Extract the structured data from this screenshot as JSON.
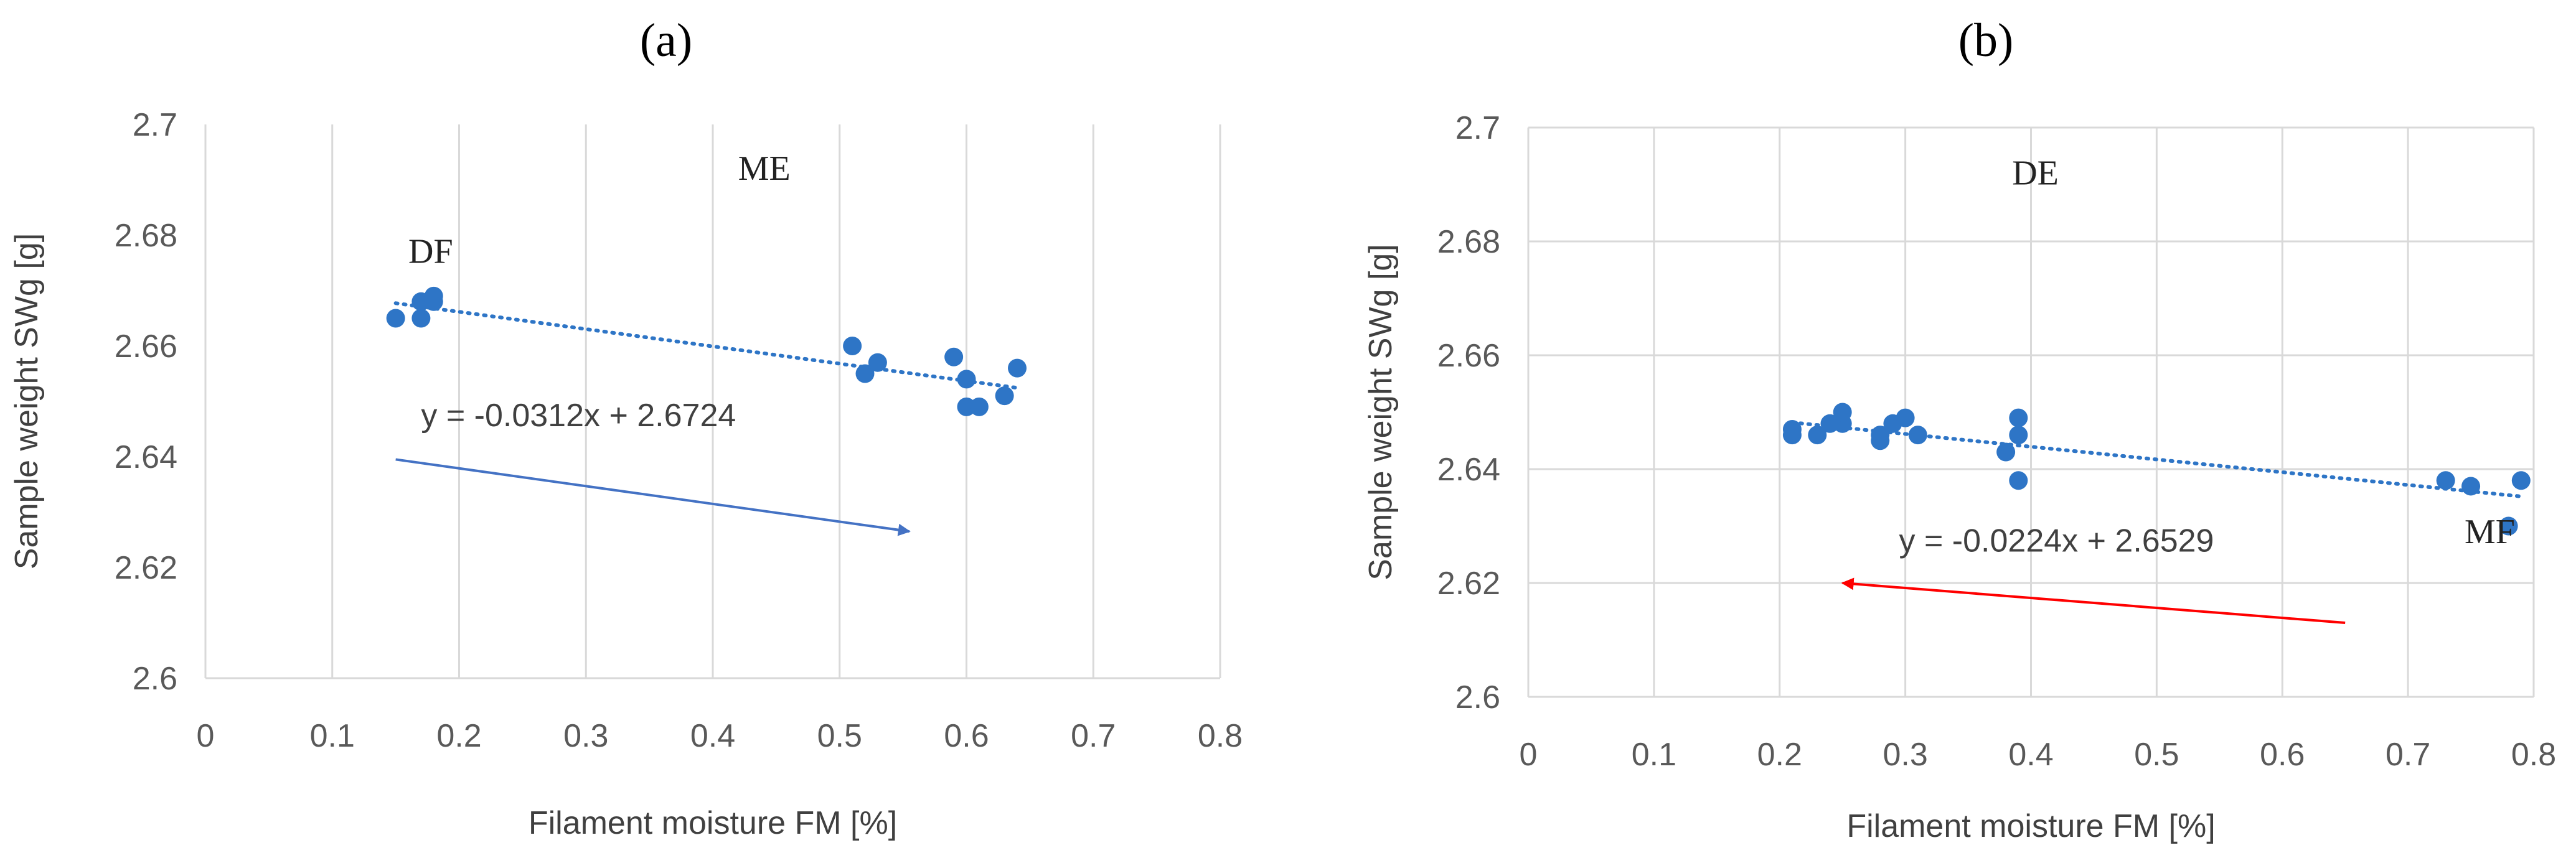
{
  "chart_data": [
    {
      "panel": "a",
      "type": "scatter",
      "xlabel": "Filament moisture FM [%]",
      "ylabel": "Sample weight SWg [g]",
      "xlim": [
        0,
        0.8
      ],
      "ylim": [
        2.6,
        2.7
      ],
      "xticks": [
        "0",
        "0.1",
        "0.2",
        "0.3",
        "0.4",
        "0.5",
        "0.6",
        "0.7",
        "0.8"
      ],
      "yticks": [
        "2.6",
        "2.62",
        "2.64",
        "2.66",
        "2.68",
        "2.7"
      ],
      "grid": "vertical",
      "points": [
        {
          "x": 0.15,
          "y": 2.665
        },
        {
          "x": 0.17,
          "y": 2.665
        },
        {
          "x": 0.17,
          "y": 2.668
        },
        {
          "x": 0.18,
          "y": 2.668
        },
        {
          "x": 0.18,
          "y": 2.669
        },
        {
          "x": 0.51,
          "y": 2.66
        },
        {
          "x": 0.52,
          "y": 2.655
        },
        {
          "x": 0.53,
          "y": 2.657
        },
        {
          "x": 0.59,
          "y": 2.658
        },
        {
          "x": 0.6,
          "y": 2.654
        },
        {
          "x": 0.6,
          "y": 2.649
        },
        {
          "x": 0.61,
          "y": 2.649
        },
        {
          "x": 0.63,
          "y": 2.651
        },
        {
          "x": 0.64,
          "y": 2.656
        }
      ],
      "trendline": {
        "equation": "y = -0.0312x + 2.6724",
        "slope": -0.0312,
        "intercept": 2.6724,
        "x_range": [
          0.15,
          0.64
        ]
      },
      "annotations": [
        {
          "text": "DF",
          "x": 0.16,
          "y": 2.675
        },
        {
          "text": "ME",
          "x": 0.42,
          "y": 2.69
        }
      ],
      "arrow": {
        "color": "#4472c4",
        "from": {
          "x": 0.15,
          "y": 2.6395
        },
        "to": {
          "x": 0.555,
          "y": 2.6265
        }
      }
    },
    {
      "panel": "b",
      "type": "scatter",
      "xlabel": "Filament moisture FM [%]",
      "ylabel": "Sample weight SWg [g]",
      "xlim": [
        0,
        0.8
      ],
      "ylim": [
        2.6,
        2.7
      ],
      "xticks": [
        "0",
        "0.1",
        "0.2",
        "0.3",
        "0.4",
        "0.5",
        "0.6",
        "0.7",
        "0.8"
      ],
      "yticks": [
        "2.6",
        "2.62",
        "2.64",
        "2.66",
        "2.68",
        "2.7"
      ],
      "grid": "both",
      "points": [
        {
          "x": 0.21,
          "y": 2.647
        },
        {
          "x": 0.21,
          "y": 2.646
        },
        {
          "x": 0.23,
          "y": 2.646
        },
        {
          "x": 0.24,
          "y": 2.648
        },
        {
          "x": 0.25,
          "y": 2.648
        },
        {
          "x": 0.25,
          "y": 2.65
        },
        {
          "x": 0.28,
          "y": 2.645
        },
        {
          "x": 0.28,
          "y": 2.646
        },
        {
          "x": 0.29,
          "y": 2.648
        },
        {
          "x": 0.3,
          "y": 2.649
        },
        {
          "x": 0.31,
          "y": 2.646
        },
        {
          "x": 0.38,
          "y": 2.643
        },
        {
          "x": 0.39,
          "y": 2.649
        },
        {
          "x": 0.39,
          "y": 2.646
        },
        {
          "x": 0.39,
          "y": 2.638
        },
        {
          "x": 0.73,
          "y": 2.638
        },
        {
          "x": 0.75,
          "y": 2.637
        },
        {
          "x": 0.78,
          "y": 2.63
        },
        {
          "x": 0.79,
          "y": 2.638
        }
      ],
      "trendline": {
        "equation": "y = -0.0224x + 2.6529",
        "slope": -0.0224,
        "intercept": 2.6529,
        "x_range": [
          0.21,
          0.79
        ]
      },
      "annotations": [
        {
          "text": "DE",
          "x": 0.385,
          "y": 2.69
        },
        {
          "text": "MF",
          "x": 0.745,
          "y": 2.627
        }
      ],
      "arrow": {
        "color": "#ff0000",
        "from": {
          "x": 0.65,
          "y": 2.613
        },
        "to": {
          "x": 0.25,
          "y": 2.62
        }
      }
    }
  ],
  "panel_labels": [
    "(a)",
    "(b)"
  ]
}
